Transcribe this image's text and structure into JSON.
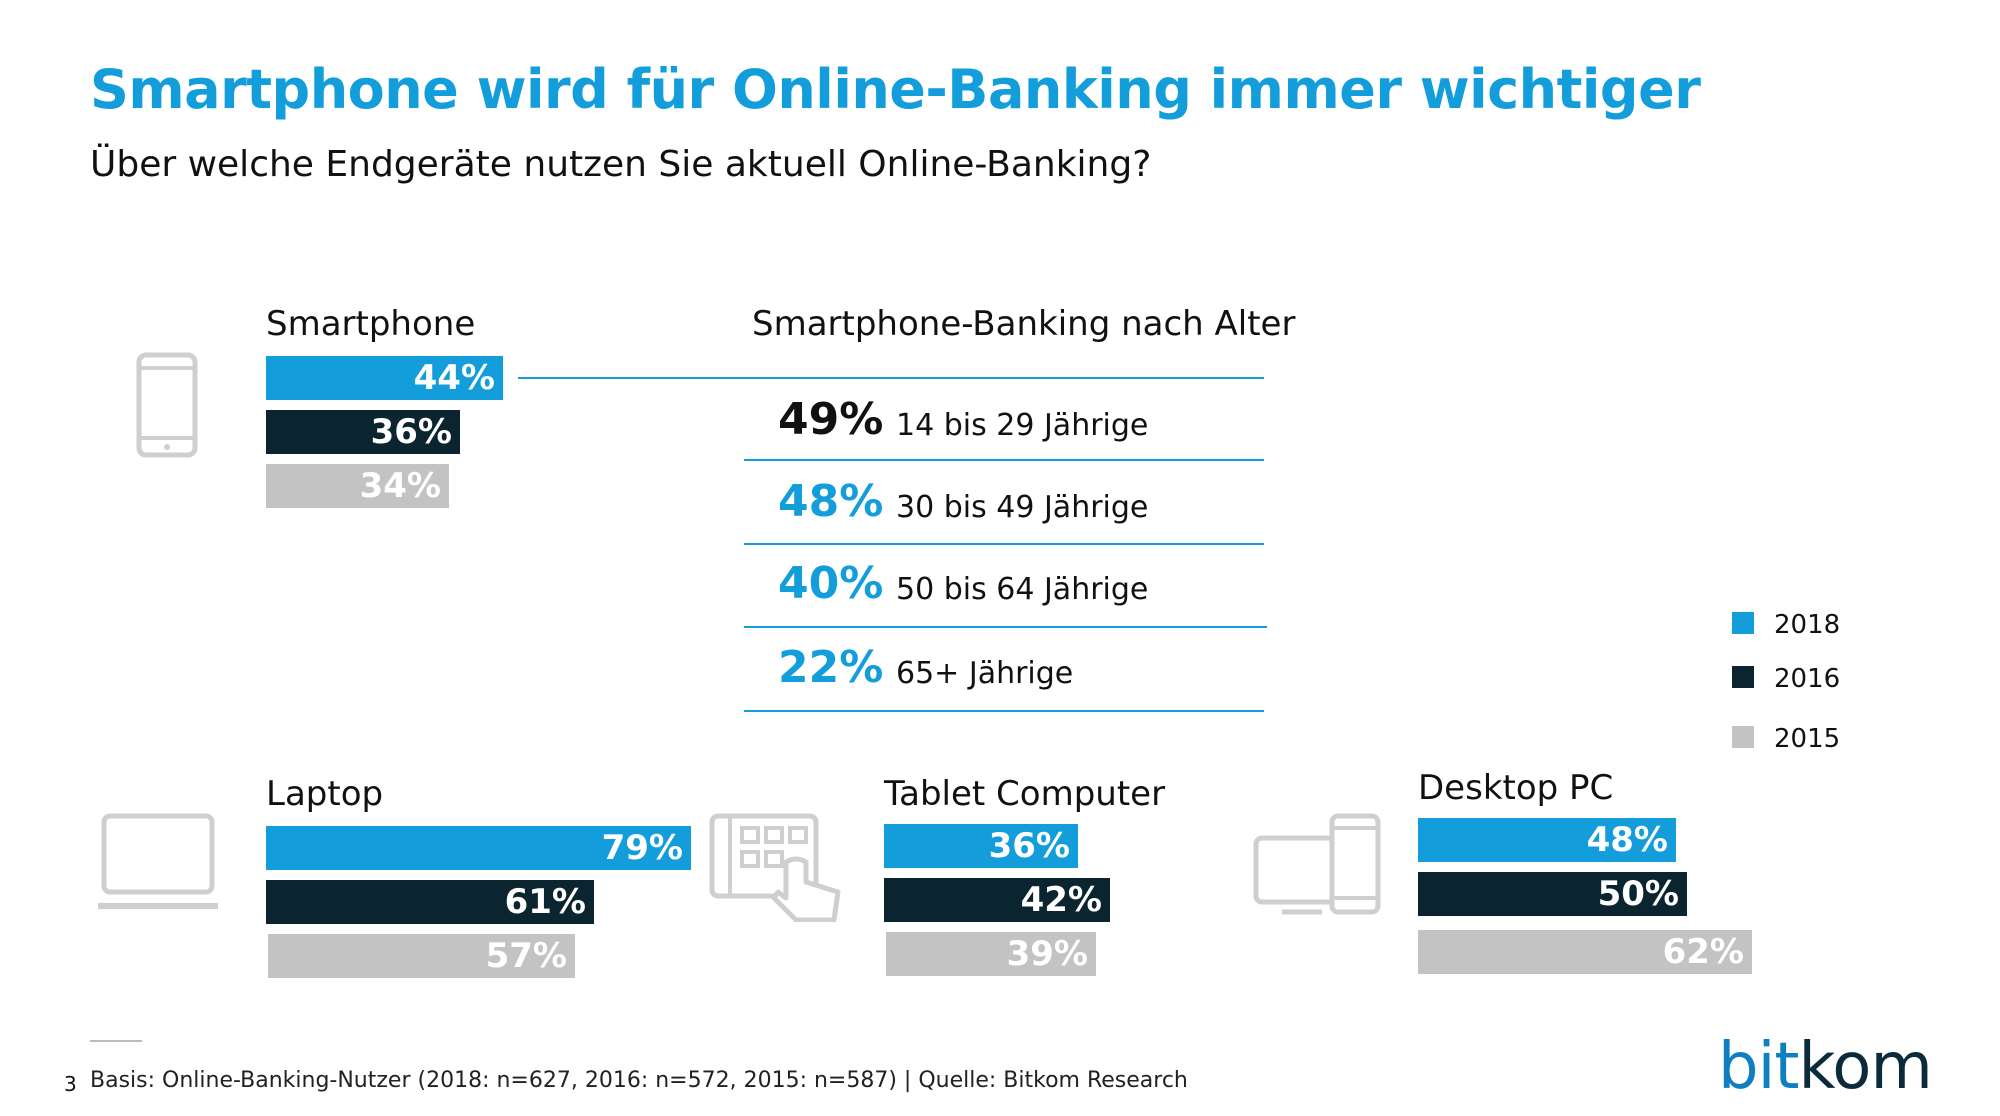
{
  "header": {
    "title": "Smartphone wird für Online-Banking immer wichtiger",
    "subtitle": "Über welche Endgeräte nutzen Sie aktuell Online-Banking?"
  },
  "colors": {
    "y2018": "#139edb",
    "y2016": "#0b2530",
    "y2015": "#c3c3c3",
    "accent": "#139edb"
  },
  "icons": [
    "smartphone-icon",
    "laptop-icon",
    "tablet-touch-icon",
    "desktop-devices-icon"
  ],
  "chart_data": [
    {
      "type": "bar",
      "title": "Smartphone",
      "series": [
        {
          "name": "2018",
          "value": 44,
          "label": "44%"
        },
        {
          "name": "2016",
          "value": 36,
          "label": "36%"
        },
        {
          "name": "2015",
          "value": 34,
          "label": "34%"
        }
      ]
    },
    {
      "type": "bar",
      "title": "Laptop",
      "series": [
        {
          "name": "2018",
          "value": 79,
          "label": "79%"
        },
        {
          "name": "2016",
          "value": 61,
          "label": "61%"
        },
        {
          "name": "2015",
          "value": 57,
          "label": "57%"
        }
      ]
    },
    {
      "type": "bar",
      "title": "Tablet Computer",
      "series": [
        {
          "name": "2018",
          "value": 36,
          "label": "36%"
        },
        {
          "name": "2016",
          "value": 42,
          "label": "42%"
        },
        {
          "name": "2015",
          "value": 39,
          "label": "39%"
        }
      ]
    },
    {
      "type": "bar",
      "title": "Desktop PC",
      "series": [
        {
          "name": "2018",
          "value": 48,
          "label": "48%"
        },
        {
          "name": "2016",
          "value": 50,
          "label": "50%"
        },
        {
          "name": "2015",
          "value": 62,
          "label": "62%"
        }
      ]
    },
    {
      "type": "table",
      "title": "Smartphone-Banking nach Alter",
      "rows": [
        {
          "value": "49%",
          "label": "14 bis 29 Jährige"
        },
        {
          "value": "48%",
          "label": "30 bis 49 Jährige"
        },
        {
          "value": "40%",
          "label": "50 bis 64 Jährige"
        },
        {
          "value": "22%",
          "label": "65+ Jährige"
        }
      ]
    }
  ],
  "legend": [
    {
      "label": "2018"
    },
    {
      "label": "2016"
    },
    {
      "label": "2015"
    }
  ],
  "footer": {
    "page_number": "3",
    "note": "Basis: Online-Banking-Nutzer (2018: n=627, 2016: n=572, 2015: n=587)  | Quelle: Bitkom Research",
    "logo_bit": "bit",
    "logo_kom": "kom"
  }
}
